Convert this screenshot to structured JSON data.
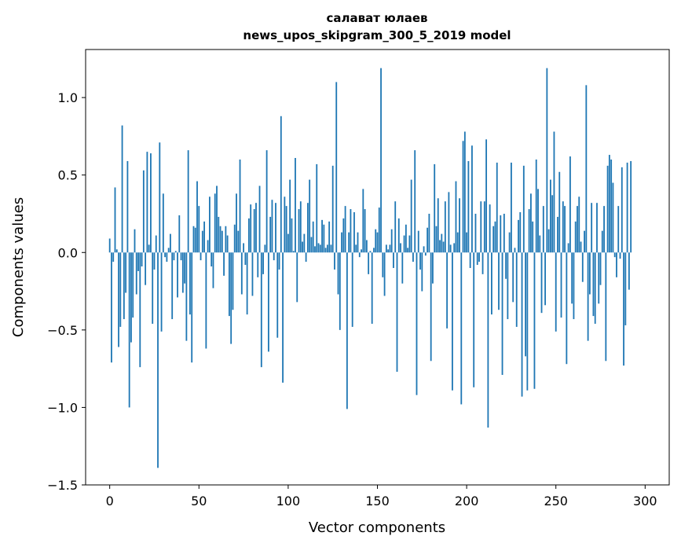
{
  "chart_data": {
    "type": "bar",
    "title": "салават юлаев",
    "subtitle": "news_upos_skipgram_300_5_2019 model",
    "xlabel": "Vector components",
    "ylabel": "Components values",
    "xlim": [
      -13.5,
      313.5
    ],
    "ylim": [
      -1.5,
      1.31
    ],
    "x_ticks": [
      0,
      50,
      100,
      150,
      200,
      250,
      300
    ],
    "x_tick_labels": [
      "0",
      "50",
      "100",
      "150",
      "200",
      "250",
      "300"
    ],
    "y_ticks": [
      -1.5,
      -1.0,
      -0.5,
      0.0,
      0.5,
      1.0
    ],
    "y_tick_labels": [
      "−1.5",
      "−1.0",
      "−0.5",
      "0.0",
      "0.5",
      "1.0"
    ],
    "bar_color": "#1f77b4",
    "grid": false,
    "values": [
      0.09,
      -0.71,
      -0.06,
      0.42,
      0.02,
      -0.61,
      -0.48,
      0.82,
      -0.43,
      -0.26,
      0.59,
      -1.0,
      -0.58,
      -0.42,
      0.15,
      -0.27,
      -0.12,
      -0.74,
      -0.09,
      0.53,
      -0.21,
      0.65,
      0.05,
      0.64,
      -0.46,
      -0.11,
      0.11,
      -1.39,
      0.71,
      -0.51,
      0.38,
      -0.03,
      -0.06,
      0.03,
      0.12,
      -0.43,
      -0.05,
      0.01,
      -0.29,
      0.24,
      -0.05,
      -0.26,
      -0.2,
      -0.57,
      0.66,
      -0.4,
      -0.71,
      0.17,
      0.16,
      0.46,
      0.3,
      -0.05,
      0.14,
      0.2,
      -0.62,
      0.08,
      0.36,
      -0.09,
      -0.23,
      0.38,
      0.43,
      0.23,
      0.17,
      0.14,
      -0.15,
      0.17,
      0.11,
      -0.41,
      -0.59,
      -0.37,
      0.18,
      0.38,
      0.14,
      0.6,
      -0.27,
      0.06,
      -0.08,
      -0.4,
      0.22,
      0.31,
      -0.28,
      0.28,
      0.32,
      -0.16,
      0.43,
      -0.74,
      -0.14,
      0.05,
      0.66,
      -0.64,
      0.23,
      0.34,
      -0.05,
      0.32,
      -0.55,
      -0.11,
      0.88,
      -0.84,
      0.36,
      0.3,
      0.12,
      0.47,
      0.22,
      0.01,
      0.61,
      -0.32,
      0.28,
      0.33,
      0.07,
      0.12,
      -0.06,
      0.32,
      0.47,
      0.1,
      0.2,
      0.04,
      0.57,
      0.06,
      0.05,
      0.21,
      0.18,
      0.03,
      0.05,
      0.2,
      0.05,
      0.56,
      -0.11,
      1.1,
      -0.27,
      -0.5,
      0.13,
      0.22,
      0.3,
      -1.01,
      0.13,
      0.28,
      -0.48,
      0.26,
      0.05,
      0.13,
      -0.03,
      0.02,
      0.41,
      0.28,
      0.08,
      -0.14,
      0.01,
      -0.46,
      0.03,
      0.15,
      0.13,
      0.29,
      1.19,
      -0.16,
      -0.28,
      0.05,
      0.02,
      0.05,
      0.15,
      -0.1,
      0.33,
      -0.77,
      0.22,
      0.06,
      -0.2,
      0.11,
      0.18,
      0.03,
      0.11,
      0.47,
      -0.06,
      0.66,
      -0.92,
      0.14,
      -0.11,
      -0.25,
      0.04,
      -0.02,
      0.16,
      0.25,
      -0.7,
      -0.2,
      0.57,
      0.17,
      0.35,
      0.08,
      0.12,
      0.07,
      0.33,
      -0.49,
      0.39,
      0.05,
      -0.89,
      0.06,
      0.46,
      0.13,
      0.35,
      -0.98,
      0.72,
      0.78,
      0.13,
      0.59,
      -0.1,
      0.69,
      -0.87,
      0.25,
      -0.08,
      -0.06,
      0.33,
      -0.14,
      0.33,
      0.73,
      -1.13,
      0.31,
      -0.4,
      0.17,
      0.2,
      0.58,
      -0.37,
      0.24,
      -0.79,
      0.25,
      -0.17,
      -0.43,
      0.13,
      0.58,
      -0.32,
      0.03,
      -0.48,
      0.21,
      0.26,
      -0.93,
      0.56,
      -0.67,
      -0.89,
      0.28,
      0.38,
      0.2,
      -0.88,
      0.6,
      0.41,
      0.11,
      -0.39,
      0.3,
      -0.34,
      1.19,
      0.15,
      0.47,
      0.37,
      0.78,
      -0.51,
      0.23,
      0.52,
      -0.42,
      0.33,
      0.3,
      -0.72,
      0.06,
      0.62,
      -0.33,
      -0.43,
      0.2,
      0.3,
      0.36,
      0.07,
      -0.19,
      0.14,
      1.08,
      -0.57,
      -0.27,
      0.32,
      -0.41,
      -0.46,
      0.32,
      -0.33,
      -0.21,
      0.14,
      0.3,
      -0.7,
      0.56,
      0.63,
      0.6,
      0.45,
      -0.03,
      -0.16,
      0.3,
      -0.04,
      0.55,
      -0.73,
      -0.47,
      0.58,
      -0.24,
      0.59
    ]
  }
}
